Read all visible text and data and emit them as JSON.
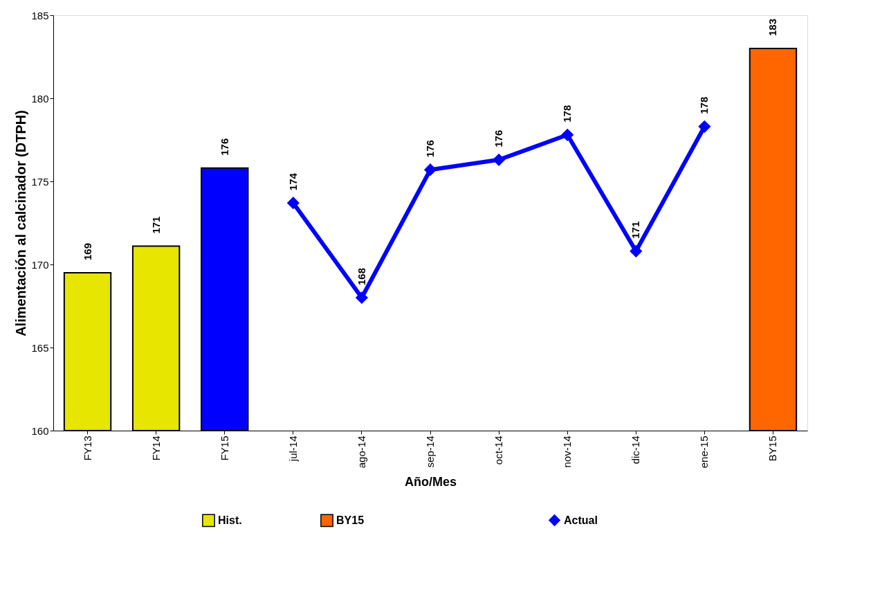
{
  "chart_data": {
    "type": "bar",
    "xlabel": "Año/Mes",
    "ylabel": "Alimentación al calcinador (DTPH)",
    "categories": [
      "FY13",
      "FY14",
      "FY15",
      "jul-14",
      "ago-14",
      "sep-14",
      "oct-14",
      "nov-14",
      "dic-14",
      "ene-15",
      "BY15"
    ],
    "series": [
      {
        "name": "Hist.",
        "color": "#e6e600",
        "colors": [
          "#e6e600",
          "#e6e600",
          "#0000ff",
          null,
          null,
          null,
          null,
          null,
          null,
          null,
          null
        ],
        "values": [
          169.5,
          171.1,
          175.8,
          null,
          null,
          null,
          null,
          null,
          null,
          null,
          null
        ],
        "value_labels": [
          "169",
          "171",
          "176",
          null,
          null,
          null,
          null,
          null,
          null,
          null,
          null
        ]
      },
      {
        "name": "BY15",
        "type": "bar",
        "color": "#ff6600",
        "values": [
          null,
          null,
          null,
          null,
          null,
          null,
          null,
          null,
          null,
          null,
          183.0
        ],
        "value_labels": [
          null,
          null,
          null,
          null,
          null,
          null,
          null,
          null,
          null,
          null,
          "183"
        ]
      },
      {
        "name": "Actual",
        "type": "line",
        "color": "#0000ff",
        "marker": "diamond",
        "line_style": "solid",
        "values": [
          null,
          null,
          null,
          173.7,
          168.0,
          175.7,
          176.3,
          177.8,
          170.8,
          178.3,
          null
        ],
        "value_labels": [
          null,
          null,
          null,
          "174",
          "168",
          "176",
          "176",
          "178",
          "171",
          "178",
          null
        ]
      }
    ],
    "ylim": [
      160,
      185
    ],
    "yticks": [
      160,
      165,
      170,
      175,
      180,
      185
    ],
    "grid": false,
    "legend": "bottom"
  }
}
